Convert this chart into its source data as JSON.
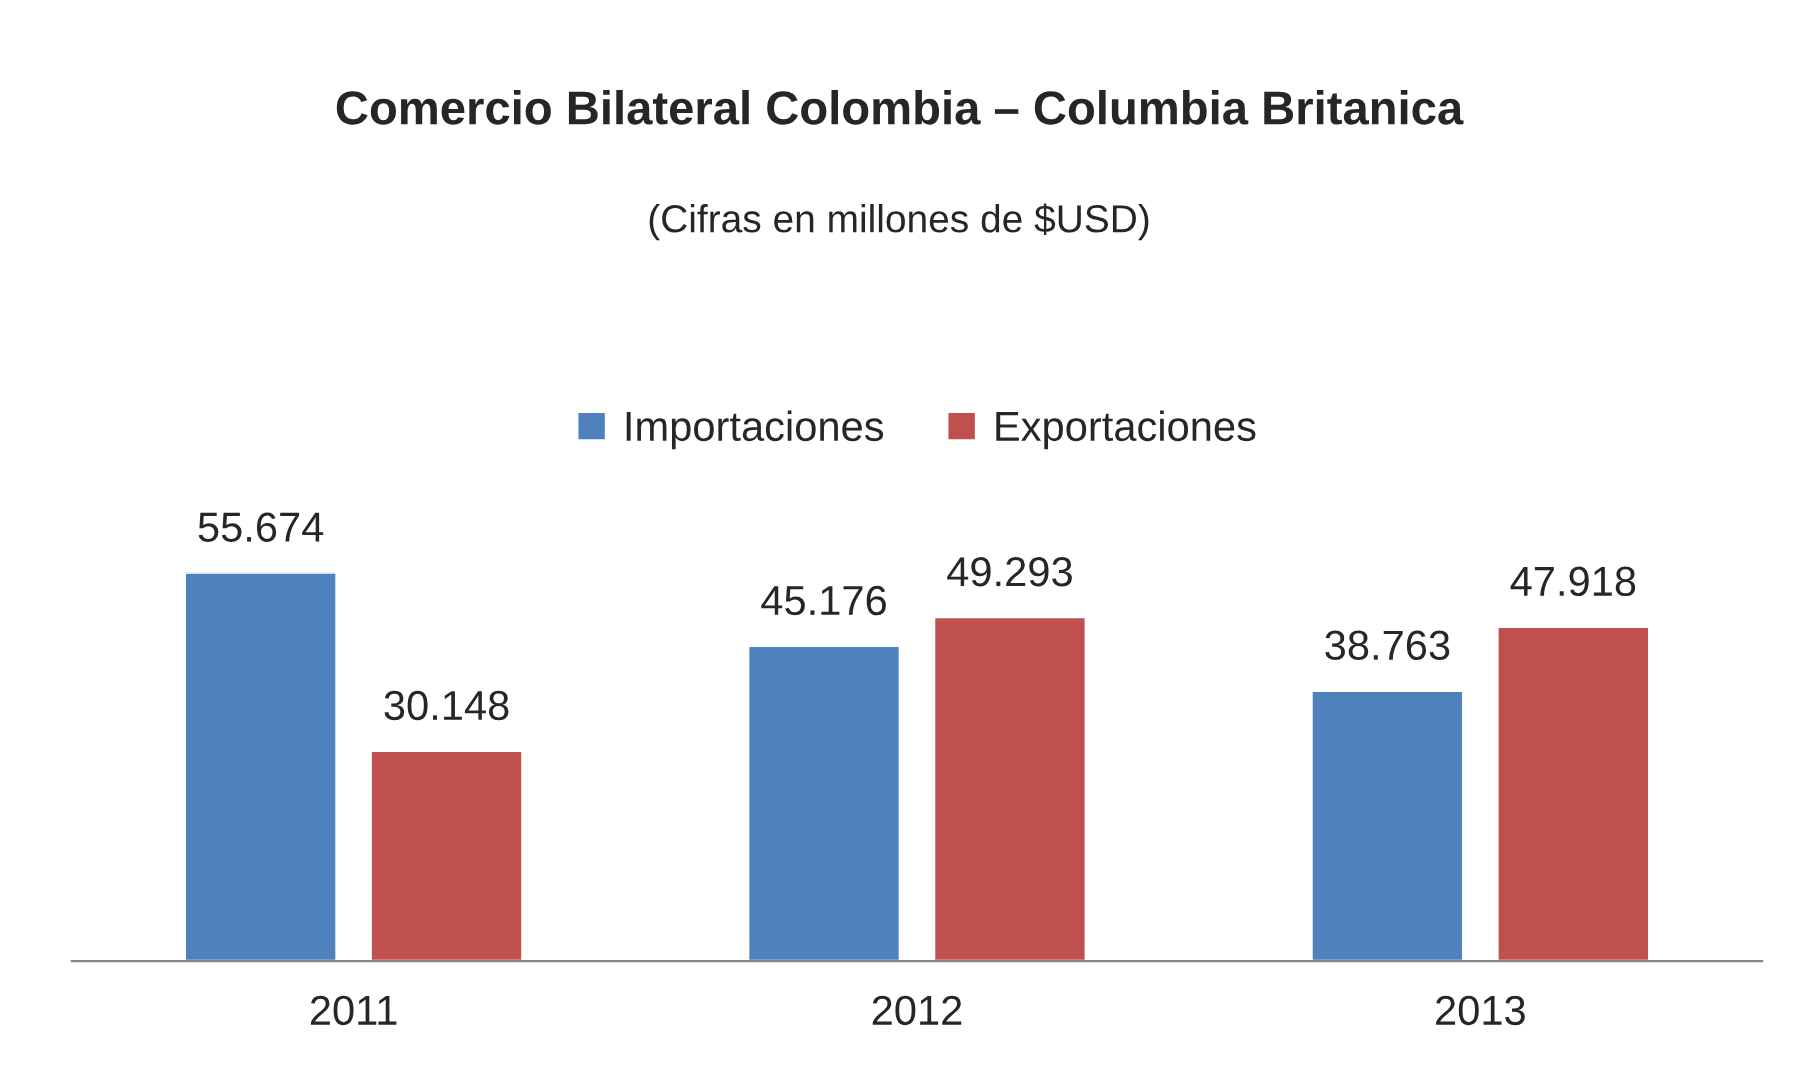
{
  "chart_data": {
    "type": "bar",
    "title": "Comercio Bilateral Colombia – Columbia Britanica",
    "subtitle": "(Cifras en millones de $USD)",
    "categories": [
      "2011",
      "2012",
      "2013"
    ],
    "series": [
      {
        "name": "Importaciones",
        "color": "#4f81bd",
        "values": [
          55.674,
          45.176,
          38.763
        ]
      },
      {
        "name": "Exportaciones",
        "color": "#c0504d",
        "values": [
          30.148,
          49.293,
          47.918
        ]
      }
    ],
    "data_labels": true,
    "legend": "top",
    "grid": false,
    "tick_labels": "x"
  }
}
